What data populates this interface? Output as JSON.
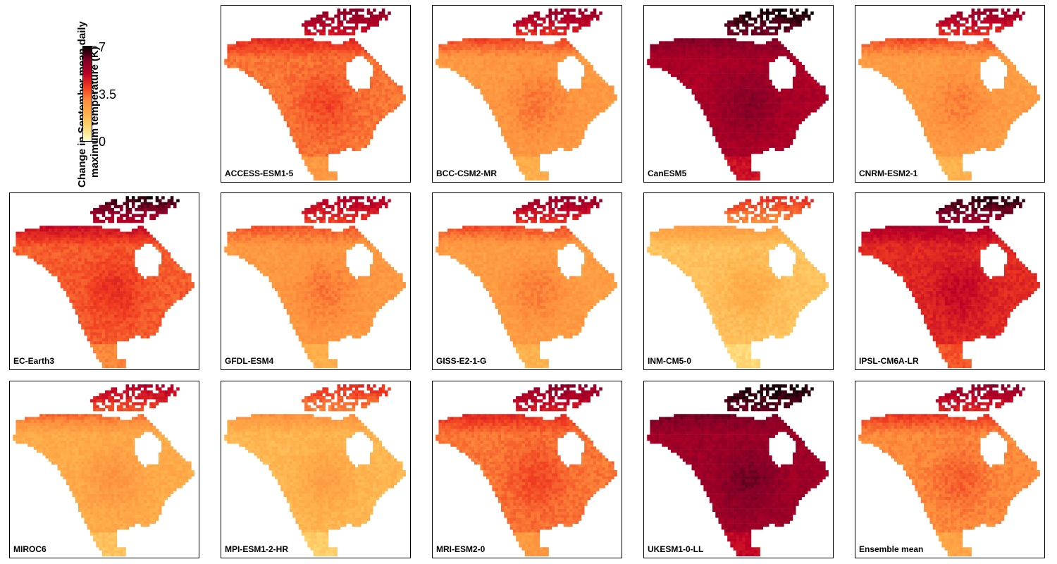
{
  "legend": {
    "title_line1": "Change in September mean daily",
    "title_line2": "maximum temperature (K)",
    "ticks": [
      "7",
      "3.5",
      "0"
    ],
    "range": [
      0,
      7
    ],
    "colors": [
      "#ffffcc",
      "#fed976",
      "#feb24c",
      "#fd8d3c",
      "#f03b20",
      "#bd0026",
      "#800026",
      "#000000"
    ]
  },
  "chart_data": {
    "type": "heatmap",
    "description_scale": "continuous",
    "colorbar_range": [
      0,
      7
    ],
    "colorbar_ticks": [
      0,
      3.5,
      7
    ],
    "colorbar_label": "Change in September mean daily maximum temperature (K)",
    "panels": [
      {
        "model": "ACCESS-ESM1-5",
        "typical_change_K": 3.3,
        "arctic_change_K": 6.0
      },
      {
        "model": "BCC-CSM2-MR",
        "typical_change_K": 2.7,
        "arctic_change_K": 6.0
      },
      {
        "model": "CanESM5",
        "typical_change_K": 5.3,
        "arctic_change_K": 7.0
      },
      {
        "model": "CNRM-ESM2-1",
        "typical_change_K": 2.6,
        "arctic_change_K": 6.0
      },
      {
        "model": "EC-Earth3",
        "typical_change_K": 3.6,
        "arctic_change_K": 7.0
      },
      {
        "model": "GFDL-ESM4",
        "typical_change_K": 2.7,
        "arctic_change_K": 5.5
      },
      {
        "model": "GISS-E2-1-G",
        "typical_change_K": 2.6,
        "arctic_change_K": 6.0
      },
      {
        "model": "INM-CM5-0",
        "typical_change_K": 1.6,
        "arctic_change_K": 4.5
      },
      {
        "model": "IPSL-CM6A-LR",
        "typical_change_K": 4.3,
        "arctic_change_K": 7.0
      },
      {
        "model": "MIROC6",
        "typical_change_K": 2.2,
        "arctic_change_K": 5.5
      },
      {
        "model": "MPI-ESM1-2-HR",
        "typical_change_K": 1.9,
        "arctic_change_K": 4.5
      },
      {
        "model": "MRI-ESM2-0",
        "typical_change_K": 3.3,
        "arctic_change_K": 6.0
      },
      {
        "model": "UKESM1-0-LL",
        "typical_change_K": 5.5,
        "arctic_change_K": 7.0
      },
      {
        "model": "Ensemble mean",
        "typical_change_K": 3.0,
        "arctic_change_K": 6.0
      }
    ]
  }
}
